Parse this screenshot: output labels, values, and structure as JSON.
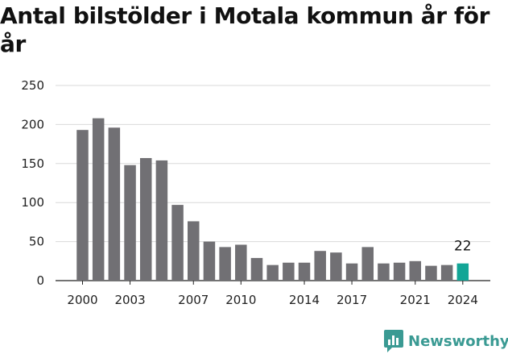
{
  "title": "Antal bilstölder i Motala kommun år för år",
  "brand": {
    "name": "Newsworthy"
  },
  "colors": {
    "bar": "#717074",
    "highlight": "#12a596",
    "grid": "#d9d9d9",
    "brand": "#3a9a93"
  },
  "chart_data": {
    "type": "bar",
    "title": "Antal bilstölder i Motala kommun år för år",
    "xlabel": "",
    "ylabel": "",
    "categories": [
      2000,
      2001,
      2002,
      2003,
      2004,
      2005,
      2006,
      2007,
      2008,
      2009,
      2010,
      2011,
      2012,
      2013,
      2014,
      2015,
      2016,
      2017,
      2018,
      2019,
      2020,
      2021,
      2022,
      2023,
      2024
    ],
    "values": [
      193,
      208,
      196,
      148,
      157,
      154,
      97,
      76,
      50,
      43,
      46,
      29,
      20,
      23,
      23,
      38,
      36,
      22,
      43,
      22,
      23,
      25,
      19,
      20,
      22
    ],
    "x_tick_labels": [
      2000,
      2003,
      2007,
      2010,
      2014,
      2017,
      2021,
      2024
    ],
    "y_ticks": [
      0,
      50,
      100,
      150,
      200,
      250
    ],
    "ylim": [
      0,
      250
    ],
    "grid": true,
    "highlight_category": 2024,
    "annotations": [
      {
        "category": 2024,
        "text": "22"
      }
    ]
  }
}
